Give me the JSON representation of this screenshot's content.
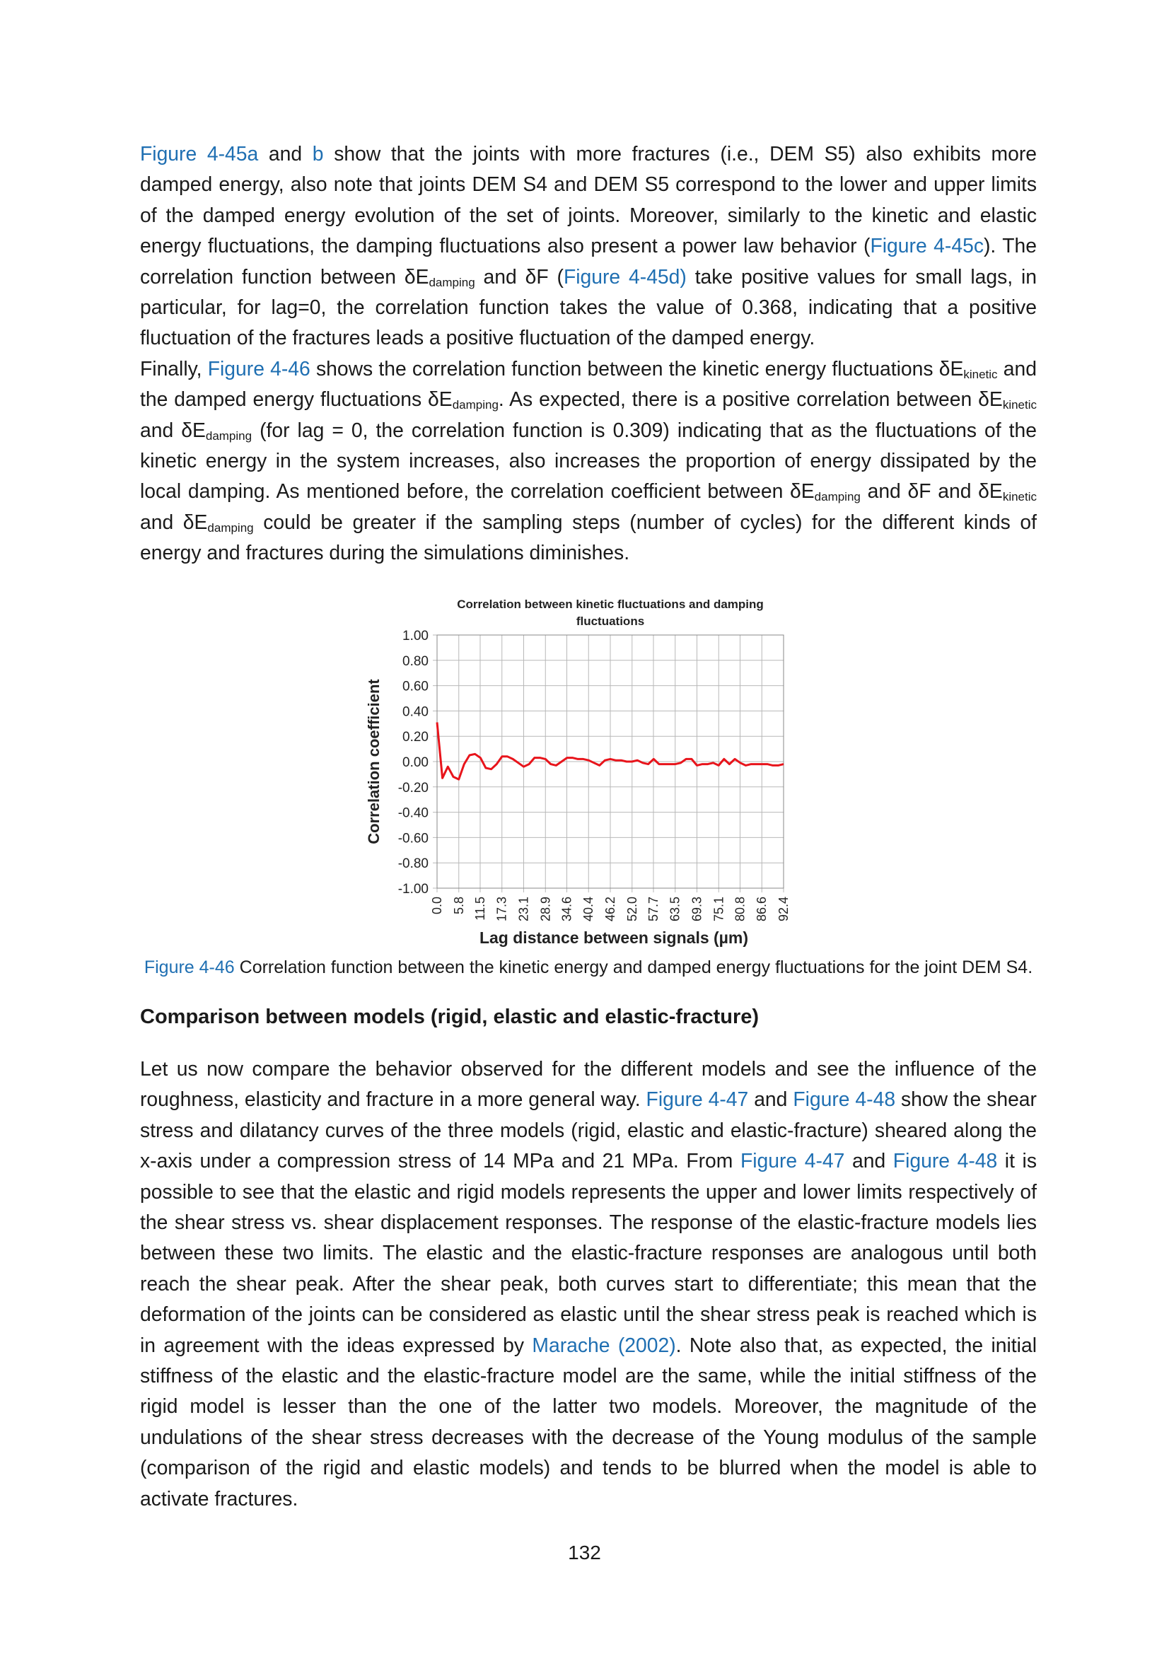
{
  "paragraph1": {
    "s1_ref1": "Figure 4-45a",
    "s1_and": " and ",
    "s1_ref2": "b",
    "s1_text": " show that the joints with more fractures (i.e., DEM S5) also exhibits more damped energy, also note that joints DEM S4 and DEM S5 correspond to the lower and upper limits of the damped energy evolution of the set of joints. Moreover, similarly to the kinetic and elastic energy fluctuations, the damping fluctuations also present a power law behavior (",
    "s1_ref3": "Figure 4-45c",
    "s1_text2": "). The correlation function between δE",
    "sub_damping1": "damping",
    "s1_text3": " and δF (",
    "s1_ref4": "Figure 4-45d)",
    "s1_text4": " take positive values for small lags, in particular, for lag=0, the correlation function takes the value of 0.368, indicating that a positive fluctuation of the fractures leads a positive fluctuation of the damped energy."
  },
  "paragraph2": {
    "t1": "Finally, ",
    "ref1": "Figure 4-46",
    "t2": " shows the correlation function between the kinetic energy fluctuations δE",
    "sub_kinetic1": "kinetic",
    "t3": " and the damped energy fluctuations δE",
    "sub_damping1": "damping",
    "t4": ". As expected, there is a positive correlation between δE",
    "sub_kinetic2": "kinetic",
    "t5": " and δE",
    "sub_damping2": "damping",
    "t6": " (for lag = 0, the correlation function is 0.309) indicating that as the fluctuations of the kinetic energy in the system increases, also increases the proportion of energy dissipated by the local damping. As mentioned before, the correlation coefficient between δE",
    "sub_damping3": "damping",
    "t7": " and δF and δE",
    "sub_kinetic3": "kinetic",
    "t8": " and δE",
    "sub_damping4": "damping",
    "t9": " could be greater if the sampling steps (number of cycles) for the different kinds of energy and fractures during the simulations diminishes."
  },
  "chart_data": {
    "type": "line",
    "title": "Correlation between kinetic fluctuations and damping fluctuations",
    "title_line1": "Correlation between kinetic fluctuations and damping",
    "title_line2": "fluctuations",
    "xlabel": "Lag distance between signals (µm)",
    "ylabel": "Correlation coefficient",
    "ylim": [
      -1.0,
      1.0
    ],
    "yticks": [
      "1.00",
      "0.80",
      "0.60",
      "0.40",
      "0.20",
      "0.00",
      "-0.20",
      "-0.40",
      "-0.60",
      "-0.80",
      "-1.00"
    ],
    "xticks": [
      "0.0",
      "5.8",
      "11.5",
      "17.3",
      "23.1",
      "28.9",
      "34.6",
      "40.4",
      "46.2",
      "52.0",
      "57.7",
      "63.5",
      "69.3",
      "75.1",
      "80.8",
      "86.6",
      "92.4"
    ],
    "grid": true,
    "line_color": "#e8141b",
    "series": [
      {
        "x": [
          0.0,
          1.44,
          2.89,
          4.33,
          5.78,
          7.22,
          8.66,
          10.11,
          11.55,
          12.99,
          14.44,
          15.88,
          17.33,
          18.77,
          20.21,
          21.66,
          23.1,
          24.54,
          25.99,
          27.43,
          28.88,
          30.32,
          31.76,
          33.21,
          34.65,
          36.09,
          37.54,
          38.98,
          40.43,
          41.87,
          43.31,
          44.76,
          46.2,
          47.64,
          49.09,
          50.53,
          51.98,
          53.42,
          54.86,
          56.31,
          57.75,
          59.19,
          60.64,
          62.08,
          63.53,
          64.97,
          66.41,
          67.86,
          69.3,
          70.74,
          72.19,
          73.63,
          75.08,
          76.52,
          77.96,
          79.41,
          80.85,
          82.29,
          83.74,
          85.18,
          86.63,
          88.07,
          89.51,
          90.96,
          92.4
        ],
        "values": [
          0.31,
          -0.13,
          -0.04,
          -0.12,
          -0.14,
          -0.02,
          0.05,
          0.06,
          0.03,
          -0.05,
          -0.06,
          -0.02,
          0.04,
          0.04,
          0.02,
          -0.01,
          -0.04,
          -0.02,
          0.03,
          0.03,
          0.02,
          -0.02,
          -0.03,
          0.0,
          0.03,
          0.03,
          0.02,
          0.02,
          0.01,
          -0.01,
          -0.03,
          0.01,
          0.02,
          0.01,
          0.01,
          0.0,
          0.0,
          0.01,
          -0.01,
          -0.02,
          0.02,
          -0.02,
          -0.02,
          -0.02,
          -0.02,
          -0.01,
          0.02,
          0.02,
          -0.03,
          -0.02,
          -0.02,
          -0.01,
          -0.03,
          0.02,
          -0.02,
          0.02,
          -0.01,
          -0.03,
          -0.02,
          -0.02,
          -0.02,
          -0.02,
          -0.03,
          -0.03,
          -0.02
        ]
      }
    ]
  },
  "caption": {
    "ref": "Figure 4-46",
    "text": " Correlation function between the kinetic energy and damped energy fluctuations for the joint DEM S4."
  },
  "section_title": "Comparison between models (rigid, elastic and elastic-fracture)",
  "paragraph3": {
    "t1": "Let us now compare the behavior observed for the different models and see the influence of the roughness, elasticity and fracture in a more general way. ",
    "ref1": "Figure 4-47",
    "t2": " and ",
    "ref2": "Figure 4-48",
    "t3": " show the shear stress and dilatancy curves of the three models (rigid, elastic and elastic-fracture) sheared along the x-axis under a compression stress of 14 MPa and 21 MPa. From ",
    "ref3": "Figure 4-47",
    "t4": " and ",
    "ref4": "Figure 4-48",
    "t5": " it is possible to see that the elastic and rigid models represents the upper and lower limits respectively of the shear stress vs. shear displacement responses. The response of the elastic-fracture models lies between these two limits. The elastic and the elastic-fracture responses are analogous until both reach the shear peak. After the shear peak, both curves start to differentiate; this mean that the deformation of the joints can be considered as elastic until the shear stress peak is reached which is in agreement with the ideas expressed by ",
    "ref5": "Marache (2002)",
    "t6": ". Note also that, as expected, the initial stiffness of the elastic and the elastic-fracture model are the same, while the initial stiffness of the rigid model is lesser than the one of the latter two models. Moreover, the magnitude of the undulations of the shear stress decreases with the decrease of the Young modulus of the sample (comparison of the rigid and elastic models) and tends to be blurred when the model is able to activate fractures."
  },
  "page_number": "132"
}
